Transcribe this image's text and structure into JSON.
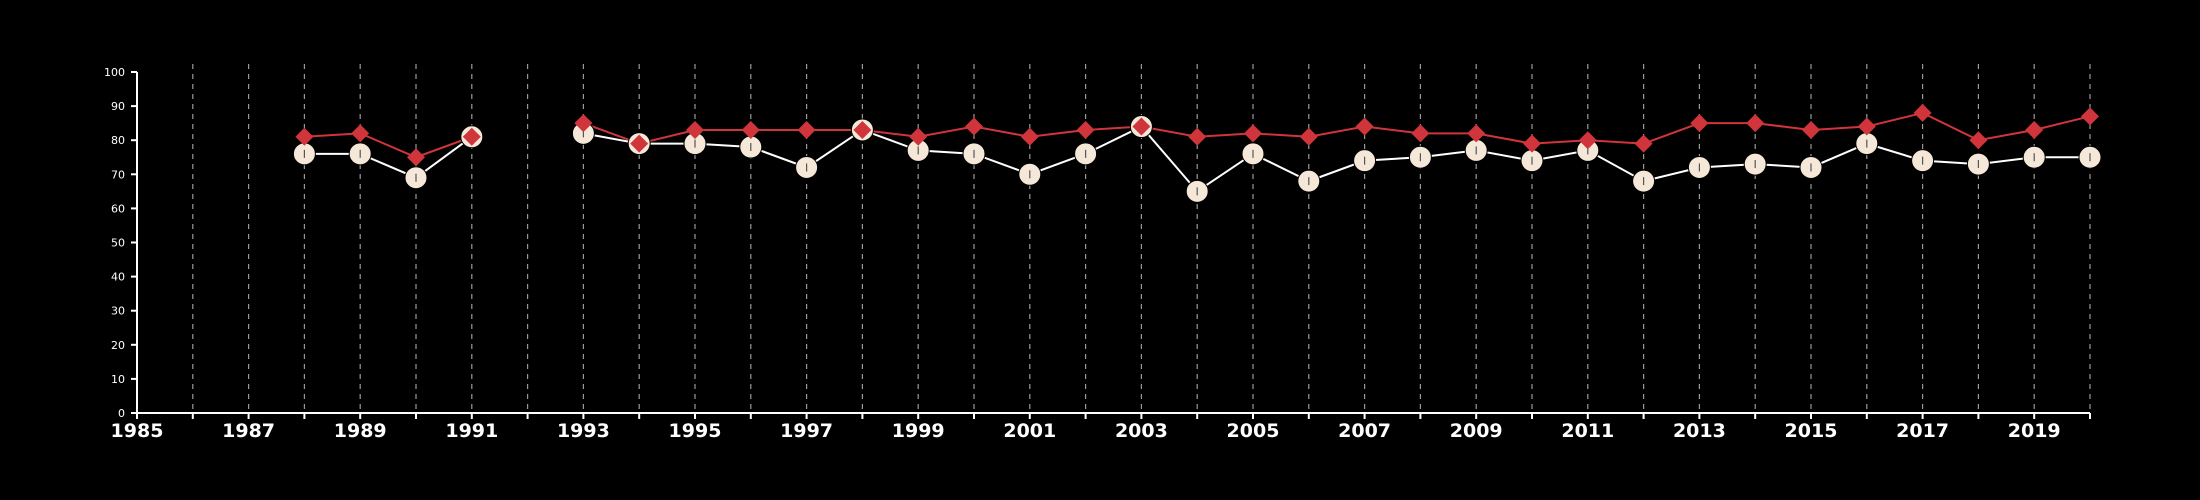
{
  "colors": {
    "background": "#000000",
    "axis": "#ffffff",
    "grid": "#9a9a9a",
    "series_a": "#d0353b",
    "series_b_marker": "#f5e8d8",
    "series_b_line": "#ffffff"
  },
  "chart_data": {
    "type": "line",
    "title": "",
    "xlabel": "",
    "ylabel": "",
    "xlim": [
      1985,
      2020
    ],
    "ylim": [
      0,
      100
    ],
    "y_ticks": [
      0,
      10,
      20,
      30,
      40,
      50,
      60,
      70,
      80,
      90,
      100
    ],
    "x_ticks": [
      1985,
      1987,
      1989,
      1991,
      1993,
      1995,
      1997,
      1999,
      2001,
      2003,
      2005,
      2007,
      2009,
      2011,
      2013,
      2015,
      2017,
      2019
    ],
    "x_tick_labels": [
      "1985",
      "1987",
      "1989",
      "1991",
      "1993",
      "1995",
      "1997",
      "1999",
      "2001",
      "2003",
      "2005",
      "2007",
      "2009",
      "2011",
      "2013",
      "2015",
      "2017",
      "2019"
    ],
    "grid": "vertical dashed at every year",
    "legend": "none",
    "series": [
      {
        "marker": "diamond",
        "color": "#d0353b",
        "points": [
          [
            1988,
            81
          ],
          [
            1989,
            82
          ],
          [
            1990,
            75
          ],
          [
            1991,
            81
          ],
          [
            1993,
            85
          ],
          [
            1994,
            79
          ],
          [
            1995,
            83
          ],
          [
            1996,
            83
          ],
          [
            1997,
            83
          ],
          [
            1998,
            83
          ],
          [
            1999,
            81
          ],
          [
            2000,
            84
          ],
          [
            2001,
            81
          ],
          [
            2002,
            83
          ],
          [
            2003,
            84
          ],
          [
            2004,
            81
          ],
          [
            2005,
            82
          ],
          [
            2006,
            81
          ],
          [
            2007,
            84
          ],
          [
            2008,
            82
          ],
          [
            2009,
            82
          ],
          [
            2010,
            79
          ],
          [
            2011,
            80
          ],
          [
            2012,
            79
          ],
          [
            2013,
            85
          ],
          [
            2014,
            85
          ],
          [
            2015,
            83
          ],
          [
            2016,
            84
          ],
          [
            2017,
            88
          ],
          [
            2018,
            80
          ],
          [
            2019,
            83
          ],
          [
            2020,
            87
          ]
        ]
      },
      {
        "marker": "circle",
        "color": "#f5e8d8",
        "points": [
          [
            1988,
            76
          ],
          [
            1989,
            76
          ],
          [
            1990,
            69
          ],
          [
            1991,
            81
          ],
          [
            1993,
            82
          ],
          [
            1994,
            79
          ],
          [
            1995,
            79
          ],
          [
            1996,
            78
          ],
          [
            1997,
            72
          ],
          [
            1998,
            83
          ],
          [
            1999,
            77
          ],
          [
            2000,
            76
          ],
          [
            2001,
            70
          ],
          [
            2002,
            76
          ],
          [
            2003,
            84
          ],
          [
            2004,
            65
          ],
          [
            2005,
            76
          ],
          [
            2006,
            68
          ],
          [
            2007,
            74
          ],
          [
            2008,
            75
          ],
          [
            2009,
            77
          ],
          [
            2010,
            74
          ],
          [
            2011,
            77
          ],
          [
            2012,
            68
          ],
          [
            2013,
            72
          ],
          [
            2014,
            73
          ],
          [
            2015,
            72
          ],
          [
            2016,
            79
          ],
          [
            2017,
            74
          ],
          [
            2018,
            73
          ],
          [
            2019,
            75
          ],
          [
            2020,
            75
          ]
        ]
      }
    ]
  }
}
